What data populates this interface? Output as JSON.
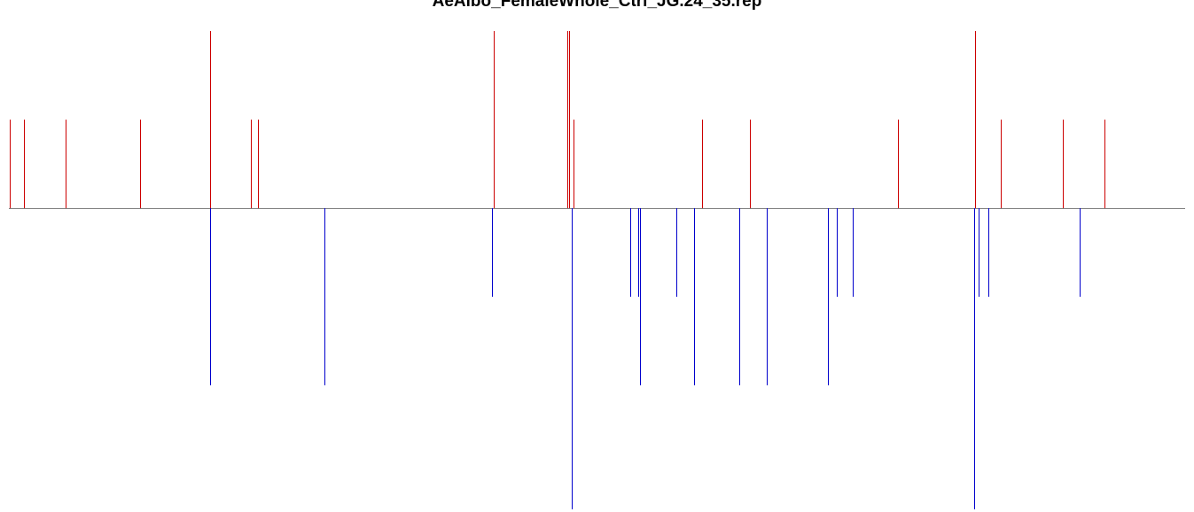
{
  "title": "AeAlbo_FemaleWhole_Ctrl_JG.24_35.rep",
  "chart_data": {
    "type": "bar",
    "title": "AeAlbo_FemaleWhole_Ctrl_JG.24_35.rep",
    "xlabel": "",
    "ylabel": "",
    "axes_visible": false,
    "grid": false,
    "baseline_color": "#808080",
    "ylim": [
      -3.5,
      2
    ],
    "xlim": [
      0,
      1347
    ],
    "series": [
      {
        "color": "#cc0000",
        "direction": "up",
        "x": [
          11,
          27,
          74,
          158,
          237,
          283,
          291,
          557,
          640,
          642,
          647,
          792,
          846,
          1013,
          1100,
          1129,
          1199,
          1246
        ],
        "values": [
          1,
          1,
          1,
          1,
          2,
          1,
          1,
          2,
          2,
          2,
          1,
          1,
          1,
          1,
          2,
          1,
          1,
          1
        ]
      },
      {
        "color": "#0000cc",
        "direction": "down",
        "x": [
          237,
          366,
          555,
          645,
          711,
          720,
          722,
          763,
          783,
          834,
          865,
          934,
          944,
          962,
          1099,
          1104,
          1115,
          1218
        ],
        "values": [
          -2,
          -2,
          -1,
          -3.4,
          -1,
          -1,
          -2,
          -1,
          -2,
          -2,
          -2,
          -2,
          -1,
          -1,
          -3.4,
          -1,
          -1,
          -1
        ]
      }
    ]
  }
}
